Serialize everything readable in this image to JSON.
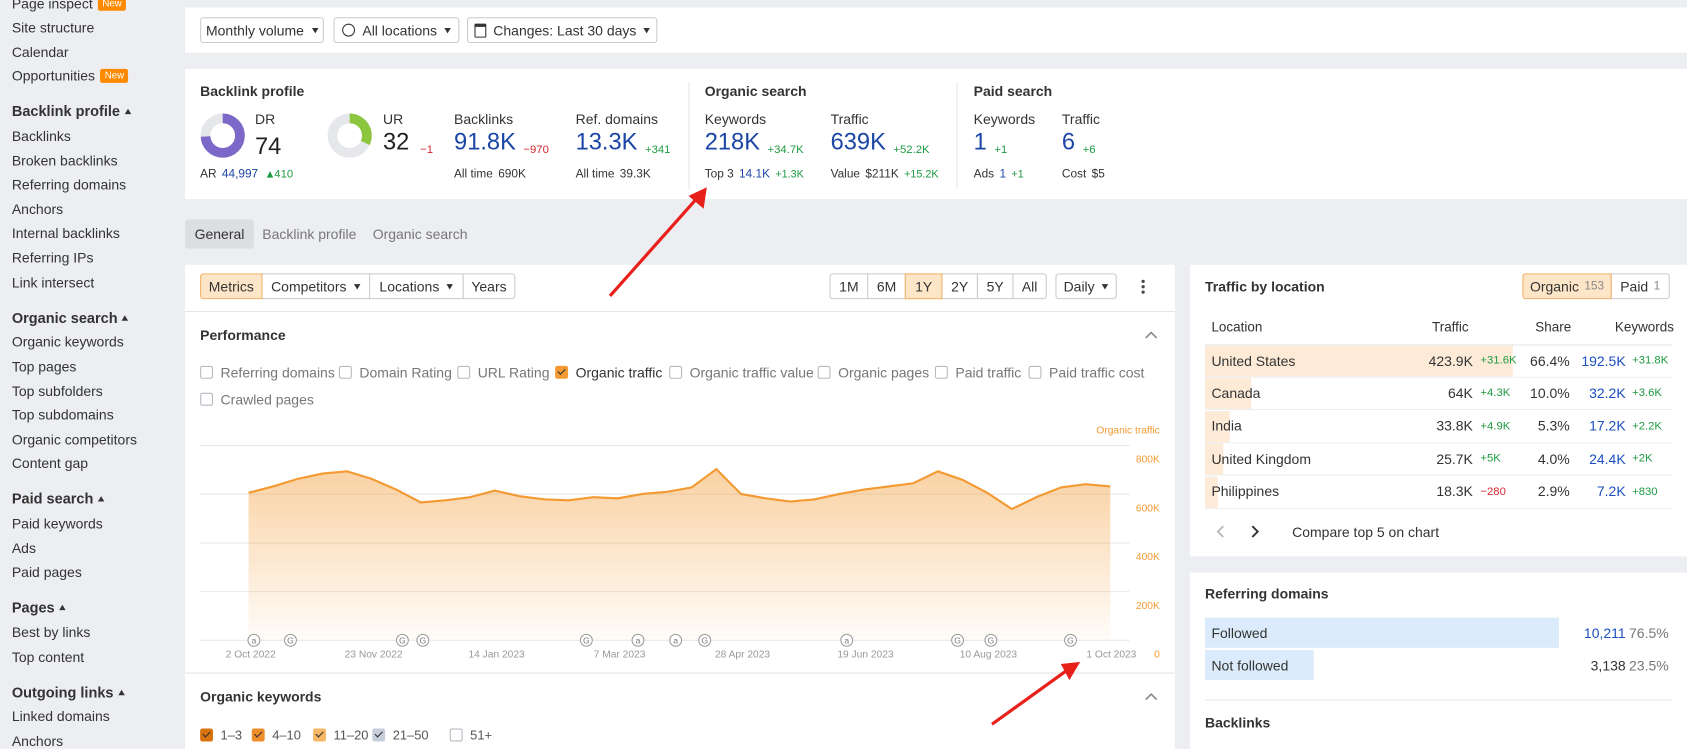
{
  "sidebar": {
    "top": [
      {
        "text": "Page inspect",
        "badge": "New"
      },
      {
        "text": "Site structure"
      },
      {
        "text": "Calendar"
      },
      {
        "text": "Opportunities",
        "badge": "New"
      }
    ],
    "sections": [
      {
        "title": "Backlink profile",
        "items": [
          "Backlinks",
          "Broken backlinks",
          "Referring domains",
          "Anchors",
          "Internal backlinks",
          "Referring IPs",
          "Link intersect"
        ]
      },
      {
        "title": "Organic search",
        "items": [
          "Organic keywords",
          "Top pages",
          "Top subfolders",
          "Top subdomains",
          "Organic competitors",
          "Content gap"
        ]
      },
      {
        "title": "Paid search",
        "items": [
          "Paid keywords",
          "Ads",
          "Paid pages"
        ]
      },
      {
        "title": "Pages",
        "items": [
          "Best by links",
          "Top content"
        ]
      },
      {
        "title": "Outgoing links",
        "items": [
          "Linked domains",
          "Anchors"
        ]
      }
    ]
  },
  "filters": [
    "Monthly volume",
    "All locations",
    "Changes: Last 30 days"
  ],
  "overview": {
    "backlink_profile": {
      "title": "Backlink profile",
      "dr": {
        "label": "DR",
        "value": 74,
        "color": "#7b68c8"
      },
      "ar": {
        "label": "AR",
        "value": "44,997",
        "change": "410"
      },
      "ur": {
        "label": "UR",
        "value": 32,
        "change": "−1",
        "color": "#8cc63f"
      },
      "backlinks": {
        "label": "Backlinks",
        "value": "91.8K",
        "change": "−970",
        "sub_label": "All time",
        "sub_value": "690K"
      },
      "ref_domains": {
        "label": "Ref. domains",
        "value": "13.3K",
        "change": "+341",
        "sub_label": "All time",
        "sub_value": "39.3K"
      }
    },
    "organic_search": {
      "title": "Organic search",
      "keywords": {
        "label": "Keywords",
        "value": "218K",
        "change": "+34.7K",
        "sub_label": "Top 3",
        "sub_value": "14.1K",
        "sub_change": "+1.3K"
      },
      "traffic": {
        "label": "Traffic",
        "value": "639K",
        "change": "+52.2K",
        "sub_label": "Value",
        "sub_value": "$211K",
        "sub_change": "+15.2K"
      }
    },
    "paid_search": {
      "title": "Paid search",
      "keywords": {
        "label": "Keywords",
        "value": "1",
        "change": "+1",
        "sub_label": "Ads",
        "sub_value": "1",
        "sub_change": "+1"
      },
      "traffic": {
        "label": "Traffic",
        "value": "6",
        "change": "+6",
        "sub_label": "Cost",
        "sub_value": "$5"
      }
    }
  },
  "tabs": {
    "items": [
      "General",
      "Backlink profile",
      "Organic search"
    ],
    "selected": 0
  },
  "toolbar": {
    "views": [
      "Metrics",
      "Competitors",
      "Locations",
      "Years"
    ],
    "selected_view": 0,
    "periods": [
      "1M",
      "6M",
      "1Y",
      "2Y",
      "5Y",
      "All"
    ],
    "selected_period": 2,
    "interval": "Daily"
  },
  "performance": {
    "title": "Performance",
    "metrics": [
      {
        "label": "Referring domains",
        "checked": false
      },
      {
        "label": "Domain Rating",
        "checked": false
      },
      {
        "label": "URL Rating",
        "checked": false
      },
      {
        "label": "Organic traffic",
        "checked": true
      },
      {
        "label": "Organic traffic value",
        "checked": false
      },
      {
        "label": "Organic pages",
        "checked": false
      },
      {
        "label": "Paid traffic",
        "checked": false
      },
      {
        "label": "Paid traffic cost",
        "checked": false
      },
      {
        "label": "Crawled pages",
        "checked": false
      }
    ],
    "chart": {
      "type": "area",
      "legend": "Organic traffic",
      "color": "#f39a32",
      "values": [
        606000,
        632000,
        663000,
        685000,
        694000,
        663000,
        619000,
        566000,
        575000,
        588000,
        615000,
        592000,
        579000,
        575000,
        588000,
        583000,
        601000,
        610000,
        628000,
        703000,
        601000,
        583000,
        570000,
        579000,
        601000,
        619000,
        632000,
        645000,
        694000,
        659000,
        606000,
        539000,
        588000,
        628000,
        641000,
        632000
      ],
      "ylim": [
        0,
        800000
      ],
      "yticks": [
        0,
        {
          "value": 200000,
          "label": "200K"
        },
        {
          "value": 400000,
          "label": "400K"
        },
        {
          "value": 600000,
          "label": "600K"
        },
        {
          "value": 800000,
          "label": "800K"
        }
      ],
      "x_labels": [
        "2 Oct 2022",
        "23 Nov 2022",
        "14 Jan 2023",
        "7 Mar 2023",
        "28 Apr 2023",
        "19 Jun 2023",
        "10 Aug 2023",
        "1 Oct 2023"
      ],
      "events": [
        "a",
        "G",
        "G",
        "G",
        "G",
        "a",
        "a",
        "G",
        "a",
        "G",
        "G",
        "G"
      ]
    }
  },
  "organic_keywords": {
    "title": "Organic keywords",
    "positions": [
      {
        "label": "1–3",
        "checked": true,
        "color": "#d9730d"
      },
      {
        "label": "4–10",
        "checked": true,
        "color": "#ee8e2a"
      },
      {
        "label": "11–20",
        "checked": true,
        "color": "#f6b766"
      },
      {
        "label": "21–50",
        "checked": true,
        "color": "#c5ceda"
      },
      {
        "label": "51+",
        "checked": false,
        "color": "#c5ceda"
      }
    ]
  },
  "traffic_by_location": {
    "title": "Traffic by location",
    "toggles": [
      {
        "label": "Organic",
        "count": "153"
      },
      {
        "label": "Paid",
        "count": "1"
      }
    ],
    "selected": 0,
    "columns": [
      "Location",
      "Traffic",
      "Share",
      "Keywords"
    ],
    "locations": [
      "United States",
      "Canada",
      "India",
      "United Kingdom",
      "Philippines"
    ],
    "traffic": [
      "423.9K",
      "64K",
      "33.8K",
      "25.7K",
      "18.3K"
    ],
    "traffic_change": [
      "+31.6K",
      "+4.3K",
      "+4.9K",
      "+5K",
      "−280"
    ],
    "share": {
      "values": [
        66.4,
        10.0,
        5.3,
        4.0,
        2.9
      ],
      "value_labels": [
        "66.4%",
        "10.0%",
        "5.3%",
        "4.0%",
        "2.9%"
      ]
    },
    "keywords": [
      "192.5K",
      "32.2K",
      "17.2K",
      "24.4K",
      "7.2K"
    ],
    "keywords_change": [
      "+31.8K",
      "+3.6K",
      "+2.2K",
      "+2K",
      "+830"
    ],
    "compare": "Compare top 5 on chart"
  },
  "referring_domains": {
    "title": "Referring domains",
    "rows": [
      "Followed",
      "Not followed"
    ],
    "counts": [
      "10,211",
      "3,138"
    ],
    "share": {
      "values": [
        76.5,
        23.5
      ],
      "value_labels": [
        "76.5%",
        "23.5%"
      ]
    }
  },
  "backlinks": {
    "title": "Backlinks"
  }
}
